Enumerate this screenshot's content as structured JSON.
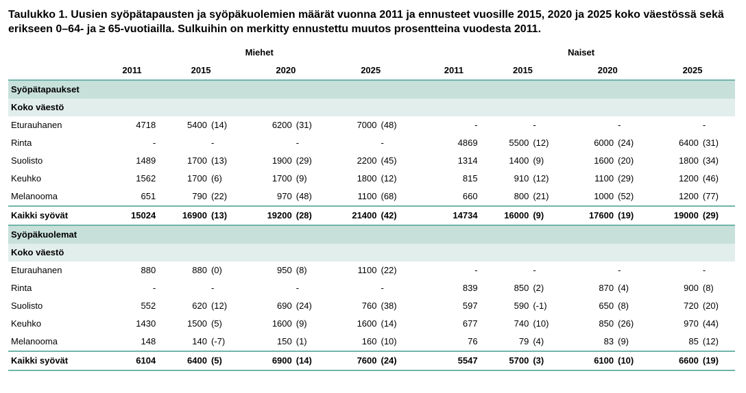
{
  "title": "Taulukko 1. Uusien syöpätapausten ja syöpäkuolemien määrät vuonna 2011 ja ennusteet vuosille 2015, 2020 ja 2025 koko väestössä sekä erikseen 0–64- ja ≥ 65-vuotiailla. Sulkuihin on merkitty ennustettu muutos prosentteina vuodesta 2011.",
  "colors": {
    "rule": "#6fb5a9",
    "section_bg": "#c8e0da",
    "sub_bg": "#e2eeeb"
  },
  "groups": {
    "men": "Miehet",
    "women": "Naiset"
  },
  "years": [
    "2011",
    "2015",
    "2020",
    "2025"
  ],
  "sections": {
    "cases": "Syöpätapaukset",
    "deaths": "Syöpäkuolemat",
    "whole": "Koko väestö"
  },
  "labels": {
    "prostate": "Eturauhanen",
    "breast": "Rinta",
    "colon": "Suolisto",
    "lung": "Keuhko",
    "melanoma": "Melanooma",
    "all": "Kaikki syövät"
  },
  "data": {
    "cases": {
      "prostate": {
        "m": [
          "4718",
          "5400",
          "(14)",
          "6200",
          "(31)",
          "7000",
          "(48)"
        ],
        "w": [
          "-",
          "",
          "-",
          "",
          "-",
          "",
          "-"
        ]
      },
      "breast": {
        "m": [
          "-",
          "",
          "-",
          "",
          "-",
          "",
          "-"
        ],
        "w": [
          "4869",
          "5500",
          "(12)",
          "6000",
          "(24)",
          "6400",
          "(31)"
        ]
      },
      "colon": {
        "m": [
          "1489",
          "1700",
          "(13)",
          "1900",
          "(29)",
          "2200",
          "(45)"
        ],
        "w": [
          "1314",
          "1400",
          "(9)",
          "1600",
          "(20)",
          "1800",
          "(34)"
        ]
      },
      "lung": {
        "m": [
          "1562",
          "1700",
          "(6)",
          "1700",
          "(9)",
          "1800",
          "(12)"
        ],
        "w": [
          "815",
          "910",
          "(12)",
          "1100",
          "(29)",
          "1200",
          "(46)"
        ]
      },
      "melanoma": {
        "m": [
          "651",
          "790",
          "(22)",
          "970",
          "(48)",
          "1100",
          "(68)"
        ],
        "w": [
          "660",
          "800",
          "(21)",
          "1000",
          "(52)",
          "1200",
          "(77)"
        ]
      },
      "all": {
        "m": [
          "15024",
          "16900",
          "(13)",
          "19200",
          "(28)",
          "21400",
          "(42)"
        ],
        "w": [
          "14734",
          "16000",
          "(9)",
          "17600",
          "(19)",
          "19000",
          "(29)"
        ]
      }
    },
    "deaths": {
      "prostate": {
        "m": [
          "880",
          "880",
          "(0)",
          "950",
          "(8)",
          "1100",
          "(22)"
        ],
        "w": [
          "-",
          "",
          "-",
          "",
          "-",
          "",
          "-"
        ]
      },
      "breast": {
        "m": [
          "-",
          "",
          "-",
          "",
          "-",
          "",
          "-"
        ],
        "w": [
          "839",
          "850",
          "(2)",
          "870",
          "(4)",
          "900",
          "(8)"
        ]
      },
      "colon": {
        "m": [
          "552",
          "620",
          "(12)",
          "690",
          "(24)",
          "760",
          "(38)"
        ],
        "w": [
          "597",
          "590",
          "(-1)",
          "650",
          "(8)",
          "720",
          "(20)"
        ]
      },
      "lung": {
        "m": [
          "1430",
          "1500",
          "(5)",
          "1600",
          "(9)",
          "1600",
          "(14)"
        ],
        "w": [
          "677",
          "740",
          "(10)",
          "850",
          "(26)",
          "970",
          "(44)"
        ]
      },
      "melanoma": {
        "m": [
          "148",
          "140",
          "(-7)",
          "150",
          "(1)",
          "160",
          "(10)"
        ],
        "w": [
          "76",
          "79",
          "(4)",
          "83",
          "(9)",
          "85",
          "(12)"
        ]
      },
      "all": {
        "m": [
          "6104",
          "6400",
          "(5)",
          "6900",
          "(14)",
          "7600",
          "(24)"
        ],
        "w": [
          "5547",
          "5700",
          "(3)",
          "6100",
          "(10)",
          "6600",
          "(19)"
        ]
      }
    }
  },
  "row_order": [
    "prostate",
    "breast",
    "colon",
    "lung",
    "melanoma",
    "all"
  ]
}
